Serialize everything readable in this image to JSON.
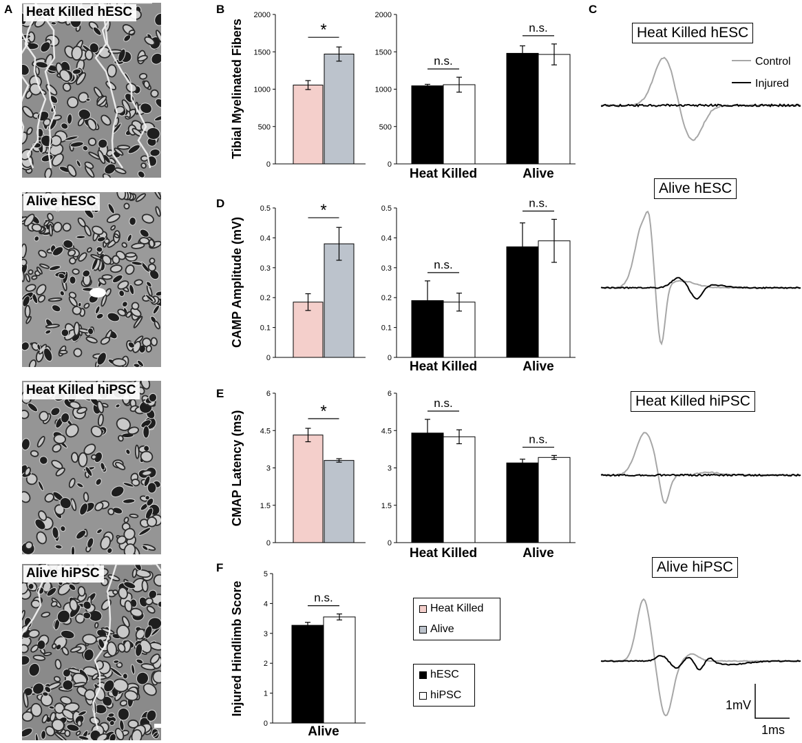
{
  "panel_letters": {
    "a": "A",
    "b": "B",
    "c": "C",
    "d": "D",
    "e": "E",
    "f": "F"
  },
  "micrographs": [
    {
      "label": "Heat Killed hESC"
    },
    {
      "label": "Alive hESC"
    },
    {
      "label": "Heat Killed hiPSC"
    },
    {
      "label": "Alive hiPSC"
    }
  ],
  "colors": {
    "heat_killed": "#f4cfcb",
    "alive": "#bcc3cc",
    "hesc": "#000000",
    "hipsc": "#ffffff",
    "control_trace": "#a6a6a6",
    "injured_trace": "#000000"
  },
  "legend_treatment": [
    {
      "label": "Heat Killed",
      "color": "#f4cfcb"
    },
    {
      "label": "Alive",
      "color": "#bcc3cc"
    }
  ],
  "legend_cell": [
    {
      "label": "hESC",
      "color": "#000000"
    },
    {
      "label": "hiPSC",
      "color": "#ffffff"
    }
  ],
  "traces": {
    "titles": [
      "Heat Killed hESC",
      "Alive hESC",
      "Heat Killed hiPSC",
      "Alive hiPSC"
    ],
    "legend": [
      {
        "label": "Control",
        "color": "#a6a6a6"
      },
      {
        "label": "Injured",
        "color": "#000000"
      }
    ],
    "scale_y": "1mV",
    "scale_x": "1ms"
  },
  "chart_data": [
    {
      "id": "B-left",
      "type": "bar",
      "ylabel": "Tibial Myelinated Fibers",
      "ylim": [
        0,
        2000
      ],
      "yticks": [
        "0",
        "500",
        "1000",
        "1500",
        "2000"
      ],
      "categories": [
        "Heat Killed",
        "Alive"
      ],
      "xticklabels": [
        "",
        ""
      ],
      "values": [
        1055,
        1470
      ],
      "errors": [
        60,
        95
      ],
      "annotations": [
        {
          "text": "*",
          "between": [
            0,
            1
          ]
        }
      ]
    },
    {
      "id": "B-right",
      "type": "bar",
      "ylim": [
        0,
        2000
      ],
      "yticks": [
        "0",
        "500",
        "1000",
        "1500",
        "2000"
      ],
      "categories": [
        "Heat Killed",
        "Alive"
      ],
      "series": [
        {
          "name": "hESC",
          "values": [
            1045,
            1480
          ],
          "errors": [
            20,
            100
          ]
        },
        {
          "name": "hiPSC",
          "values": [
            1060,
            1465
          ],
          "errors": [
            100,
            140
          ]
        }
      ],
      "annotations": [
        {
          "text": "n.s.",
          "group": 0
        },
        {
          "text": "n.s.",
          "group": 1
        }
      ]
    },
    {
      "id": "D-left",
      "type": "bar",
      "ylabel": "CAMP Amplitude (mV)",
      "ylim": [
        0,
        0.5
      ],
      "yticks": [
        "0",
        "0.1",
        "0.2",
        "0.3",
        "0.4",
        "0.5"
      ],
      "categories": [
        "Heat Killed",
        "Alive"
      ],
      "xticklabels": [
        "",
        ""
      ],
      "values": [
        0.185,
        0.38
      ],
      "errors": [
        0.028,
        0.055
      ],
      "annotations": [
        {
          "text": "*",
          "between": [
            0,
            1
          ]
        }
      ]
    },
    {
      "id": "D-right",
      "type": "bar",
      "ylim": [
        0,
        0.5
      ],
      "yticks": [
        "0",
        "0.1",
        "0.2",
        "0.3",
        "0.4",
        "0.5"
      ],
      "categories": [
        "Heat Killed",
        "Alive"
      ],
      "series": [
        {
          "name": "hESC",
          "values": [
            0.19,
            0.37
          ],
          "errors": [
            0.066,
            0.08
          ]
        },
        {
          "name": "hiPSC",
          "values": [
            0.185,
            0.39
          ],
          "errors": [
            0.03,
            0.072
          ]
        }
      ],
      "annotations": [
        {
          "text": "n.s.",
          "group": 0
        },
        {
          "text": "n.s.",
          "group": 1
        }
      ]
    },
    {
      "id": "E-left",
      "type": "bar",
      "ylabel": "CMAP Latency (ms)",
      "ylim": [
        0,
        6
      ],
      "yticks": [
        "0",
        "1.5",
        "3",
        "4.5",
        "6"
      ],
      "categories": [
        "Heat Killed",
        "Alive"
      ],
      "xticklabels": [
        "",
        ""
      ],
      "values": [
        4.32,
        3.3
      ],
      "errors": [
        0.27,
        0.07
      ],
      "annotations": [
        {
          "text": "*",
          "between": [
            0,
            1
          ]
        }
      ]
    },
    {
      "id": "E-right",
      "type": "bar",
      "ylim": [
        0,
        6
      ],
      "yticks": [
        "0",
        "1.5",
        "3",
        "4.5",
        "6"
      ],
      "categories": [
        "Heat Killed",
        "Alive"
      ],
      "series": [
        {
          "name": "hESC",
          "values": [
            4.4,
            3.2
          ],
          "errors": [
            0.55,
            0.15
          ]
        },
        {
          "name": "hiPSC",
          "values": [
            4.25,
            3.42
          ],
          "errors": [
            0.28,
            0.08
          ]
        }
      ],
      "annotations": [
        {
          "text": "n.s.",
          "group": 0
        },
        {
          "text": "n.s.",
          "group": 1
        }
      ]
    },
    {
      "id": "F",
      "type": "bar",
      "ylabel": "Injured Hindlimb Score",
      "ylim": [
        0,
        5
      ],
      "yticks": [
        "0",
        "1",
        "2",
        "3",
        "4",
        "5"
      ],
      "categories": [
        "Alive"
      ],
      "series": [
        {
          "name": "hESC",
          "values": [
            3.27
          ],
          "errors": [
            0.1
          ]
        },
        {
          "name": "hiPSC",
          "values": [
            3.55
          ],
          "errors": [
            0.1
          ]
        }
      ],
      "annotations": [
        {
          "text": "n.s.",
          "group": 0
        }
      ]
    }
  ]
}
